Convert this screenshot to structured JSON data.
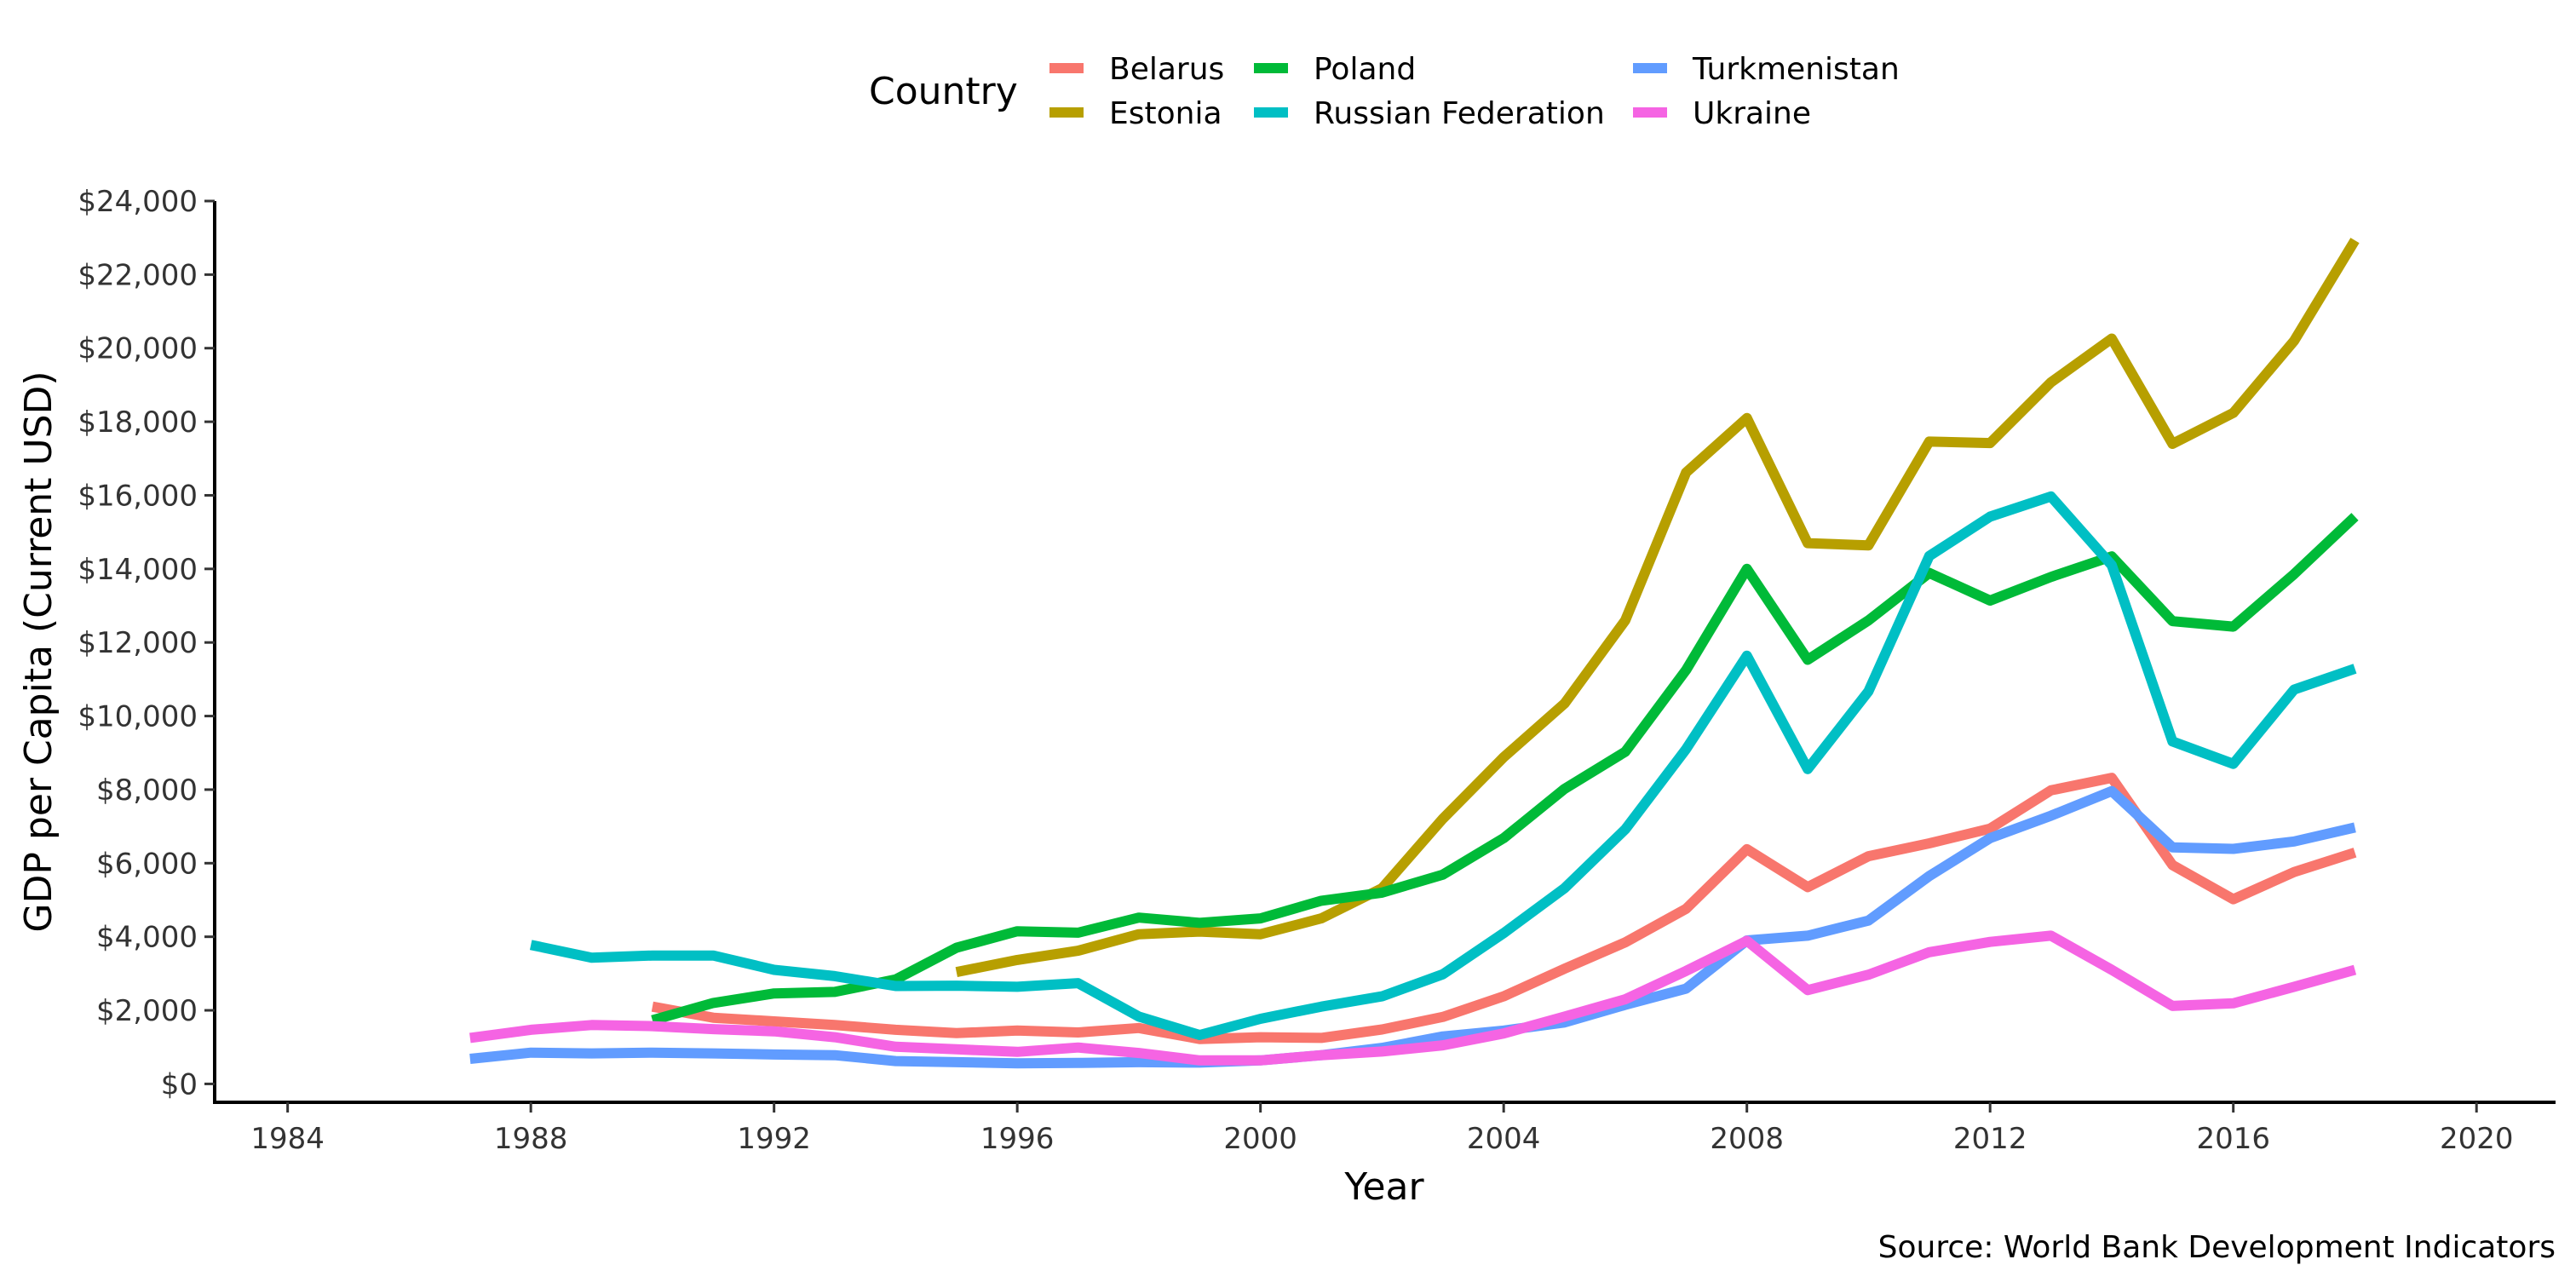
{
  "chart_data": {
    "type": "line",
    "xlabel": "Year",
    "ylabel": "GDP per Capita (Current USD)",
    "caption": "Source: World Bank Development Indicators",
    "xlim": [
      1982.8,
      2021.3
    ],
    "ylim": [
      -500,
      24000
    ],
    "x_ticks": [
      1984,
      1988,
      1992,
      1996,
      2000,
      2004,
      2008,
      2012,
      2016,
      2020
    ],
    "y_ticks": [
      0,
      2000,
      4000,
      6000,
      8000,
      10000,
      12000,
      14000,
      16000,
      18000,
      20000,
      22000,
      24000
    ],
    "y_tick_labels": [
      "$0",
      "$2,000",
      "$4,000",
      "$6,000",
      "$8,000",
      "$10,000",
      "$12,000",
      "$14,000",
      "$16,000",
      "$18,000",
      "$20,000",
      "$22,000",
      "$24,000"
    ],
    "x_tick_labels": [
      "1984",
      "1988",
      "1992",
      "1996",
      "2000",
      "2004",
      "2008",
      "2012",
      "2016",
      "2020"
    ],
    "grid": false,
    "legend": {
      "title": "Country",
      "placement": "top",
      "order": [
        "Belarus",
        "Estonia",
        "Poland",
        "Russian Federation",
        "Turkmenistan",
        "Ukraine"
      ]
    },
    "series": [
      {
        "name": "Belarus",
        "color": "#F8766D",
        "x": [
          1990,
          1991,
          1992,
          1993,
          1994,
          1995,
          1996,
          1997,
          1998,
          1999,
          2000,
          2001,
          2002,
          2003,
          2004,
          2005,
          2006,
          2007,
          2008,
          2009,
          2010,
          2011,
          2012,
          2013,
          2014,
          2015,
          2016,
          2017,
          2018
        ],
        "y": [
          2100,
          1800,
          1700,
          1600,
          1470,
          1380,
          1450,
          1400,
          1520,
          1220,
          1270,
          1250,
          1480,
          1820,
          2380,
          3130,
          3850,
          4760,
          6380,
          5350,
          6190,
          6540,
          6940,
          7980,
          8320,
          5950,
          5020,
          5760,
          6290
        ]
      },
      {
        "name": "Estonia",
        "color": "#B79F00",
        "x": [
          1995,
          1996,
          1997,
          1998,
          1999,
          2000,
          2001,
          2002,
          2003,
          2004,
          2005,
          2006,
          2007,
          2008,
          2009,
          2010,
          2011,
          2012,
          2013,
          2014,
          2015,
          2016,
          2017,
          2018
        ],
        "y": [
          3040,
          3370,
          3620,
          4070,
          4140,
          4070,
          4500,
          5320,
          7210,
          8880,
          10340,
          12600,
          16620,
          18100,
          14700,
          14640,
          17460,
          17420,
          19070,
          20260,
          17400,
          18240,
          20200,
          22930
        ]
      },
      {
        "name": "Poland",
        "color": "#00BA38",
        "x": [
          1990,
          1991,
          1992,
          1993,
          1994,
          1995,
          1996,
          1997,
          1998,
          1999,
          2000,
          2001,
          2002,
          2003,
          2004,
          2005,
          2006,
          2007,
          2008,
          2009,
          2010,
          2011,
          2012,
          2013,
          2014,
          2015,
          2016,
          2017,
          2018
        ],
        "y": [
          1730,
          2200,
          2460,
          2500,
          2840,
          3700,
          4150,
          4110,
          4520,
          4380,
          4500,
          4980,
          5200,
          5690,
          6680,
          8020,
          9030,
          11250,
          14000,
          11530,
          12600,
          13890,
          13140,
          13780,
          14340,
          12580,
          12430,
          13860,
          15420
        ]
      },
      {
        "name": "Russian Federation",
        "color": "#00BFC4",
        "x": [
          1988,
          1989,
          1990,
          1991,
          1992,
          1993,
          1994,
          1995,
          1996,
          1997,
          1998,
          1999,
          2000,
          2001,
          2002,
          2003,
          2004,
          2005,
          2006,
          2007,
          2008,
          2009,
          2010,
          2011,
          2012,
          2013,
          2014,
          2015,
          2016,
          2017,
          2018
        ],
        "y": [
          3780,
          3430,
          3490,
          3490,
          3100,
          2930,
          2660,
          2670,
          2640,
          2740,
          1830,
          1330,
          1770,
          2100,
          2380,
          2980,
          4100,
          5320,
          6920,
          9100,
          11640,
          8560,
          10670,
          14350,
          15420,
          15970,
          14100,
          9310,
          8700,
          10720,
          11290
        ]
      },
      {
        "name": "Turkmenistan",
        "color": "#619CFF",
        "x": [
          1987,
          1988,
          1989,
          1990,
          1991,
          1992,
          1993,
          1994,
          1995,
          1996,
          1997,
          1998,
          1999,
          2000,
          2001,
          2002,
          2003,
          2004,
          2005,
          2006,
          2007,
          2008,
          2009,
          2010,
          2011,
          2012,
          2013,
          2014,
          2015,
          2016,
          2017,
          2018
        ],
        "y": [
          680,
          850,
          830,
          850,
          830,
          800,
          780,
          620,
          590,
          560,
          570,
          590,
          580,
          640,
          780,
          980,
          1290,
          1450,
          1670,
          2150,
          2590,
          3900,
          4030,
          4440,
          5650,
          6680,
          7290,
          7960,
          6430,
          6390,
          6590,
          6970
        ]
      },
      {
        "name": "Ukraine",
        "color": "#F564E3",
        "x": [
          1987,
          1988,
          1989,
          1990,
          1991,
          1992,
          1993,
          1994,
          1995,
          1996,
          1997,
          1998,
          1999,
          2000,
          2001,
          2002,
          2003,
          2004,
          2005,
          2006,
          2007,
          2008,
          2009,
          2010,
          2011,
          2012,
          2013,
          2014,
          2015,
          2016,
          2017,
          2018
        ],
        "y": [
          1250,
          1470,
          1600,
          1570,
          1490,
          1430,
          1270,
          1010,
          940,
          870,
          990,
          840,
          640,
          640,
          780,
          880,
          1050,
          1370,
          1830,
          2300,
          3070,
          3890,
          2550,
          2970,
          3580,
          3860,
          4030,
          3100,
          2120,
          2190,
          2640,
          3100
        ]
      }
    ]
  }
}
